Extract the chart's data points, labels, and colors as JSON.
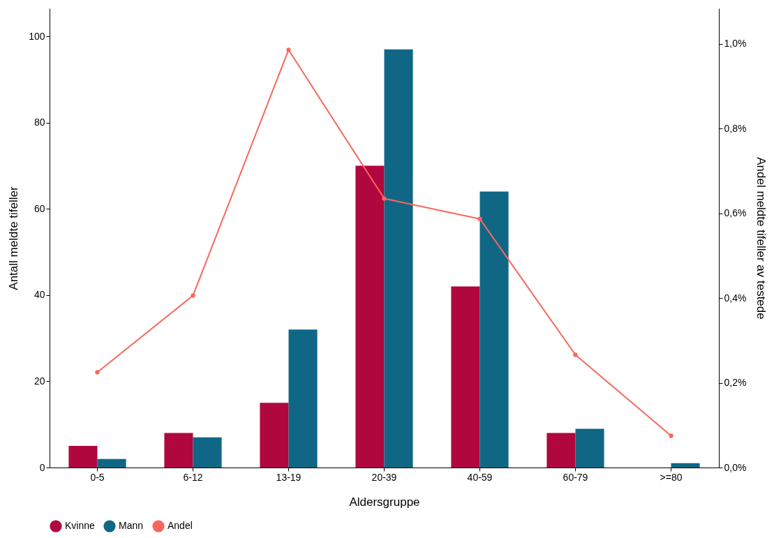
{
  "chart_data": {
    "type": "bar",
    "xlabel": "Aldersgruppe",
    "ylabel": "Antall meldte tifeller",
    "y2label": "Andel meldte tifeller av testede",
    "categories": [
      "0-5",
      "6-12",
      "13-19",
      "20-39",
      "40-59",
      "60-79",
      ">=80"
    ],
    "series": [
      {
        "name": "Kvinne",
        "color": "#b0073e",
        "values": [
          5,
          8,
          15,
          70,
          42,
          8,
          0
        ]
      },
      {
        "name": "Mann",
        "color": "#106785",
        "values": [
          2,
          7,
          32,
          97,
          64,
          9,
          1
        ]
      },
      {
        "name": "Andel",
        "type": "line",
        "axis": "y2",
        "color": "#f8675d",
        "values": [
          0.225,
          0.406,
          0.986,
          0.635,
          0.587,
          0.266,
          0.075
        ]
      }
    ],
    "ylim": [
      0,
      106.5
    ],
    "yticks": [
      0,
      20,
      40,
      60,
      80,
      100
    ],
    "y2lim": [
      0,
      1.084
    ],
    "y2ticks": [
      {
        "value": 0,
        "label": "0,0%"
      },
      {
        "value": 0.2,
        "label": "0,2%"
      },
      {
        "value": 0.4,
        "label": "0,4%"
      },
      {
        "value": 0.6,
        "label": "0,6%"
      },
      {
        "value": 0.8,
        "label": "0,8%"
      },
      {
        "value": 1.0,
        "label": "1,0%"
      }
    ],
    "legend": "bottom",
    "marker": "circle",
    "line_style": "solid"
  }
}
